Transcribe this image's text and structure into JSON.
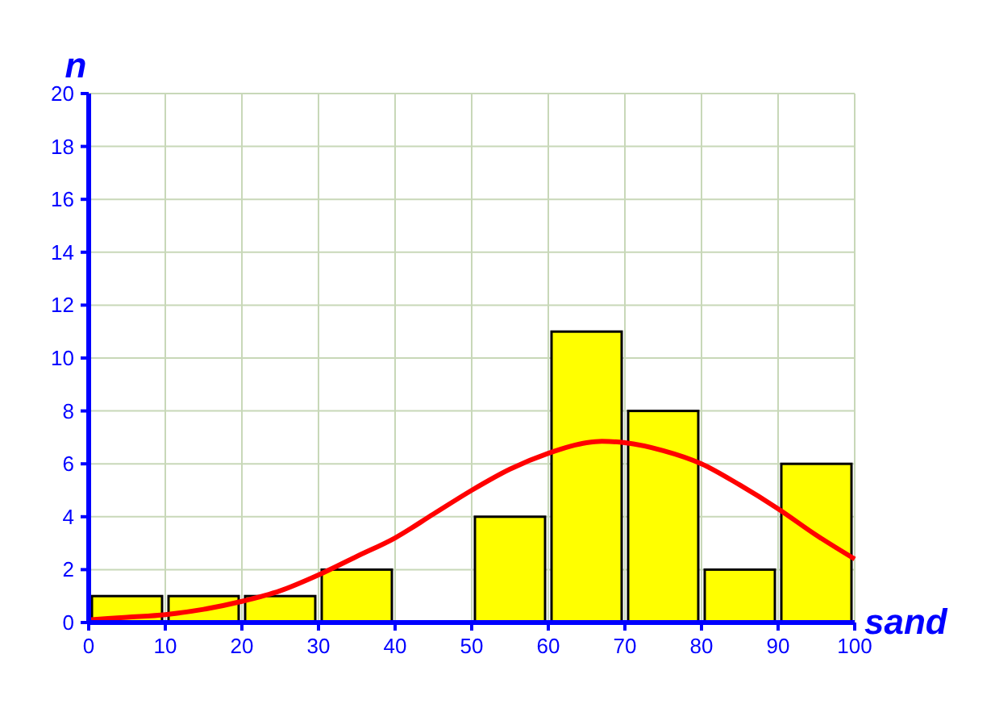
{
  "chart_data": {
    "type": "histogram",
    "xlabel": "sand",
    "ylabel": "n",
    "bins": [
      0,
      10,
      20,
      30,
      40,
      50,
      60,
      70,
      80,
      90,
      100
    ],
    "series": [
      {
        "color": "#ffff00",
        "values": [
          1,
          1,
          1,
          2,
          0,
          4,
          11,
          8,
          2,
          6
        ]
      },
      {
        "type": "line",
        "color": "#ff0000",
        "x": [
          0,
          5,
          10,
          15,
          20,
          25,
          30,
          35,
          40,
          45,
          50,
          55,
          60,
          65,
          67,
          70,
          75,
          80,
          85,
          90,
          95,
          100
        ],
        "values": [
          0.1,
          0.2,
          0.3,
          0.5,
          0.8,
          1.2,
          1.8,
          2.5,
          3.2,
          4.1,
          5.0,
          5.8,
          6.4,
          6.8,
          6.85,
          6.8,
          6.5,
          6.0,
          5.2,
          4.3,
          3.3,
          2.4
        ]
      }
    ],
    "xlim": [
      0,
      100
    ],
    "xticks": [
      0,
      10,
      20,
      30,
      40,
      50,
      60,
      70,
      80,
      90,
      100
    ],
    "ylim": [
      0,
      20
    ],
    "yticks": [
      0,
      2,
      4,
      6,
      8,
      10,
      12,
      14,
      16,
      18,
      20
    ],
    "grid": true
  }
}
